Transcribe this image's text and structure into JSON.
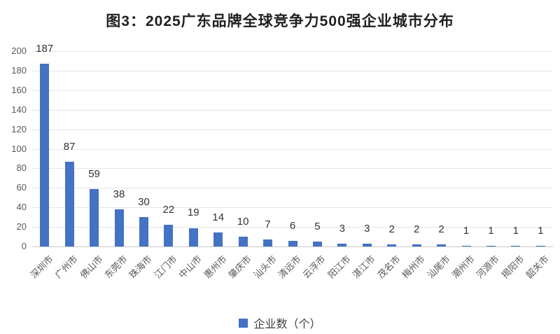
{
  "title": "图3：2025广东品牌全球竞争力500强企业城市分布",
  "legend": {
    "label": "企业数（个）",
    "swatch_color": "#4472C4"
  },
  "colors": {
    "bar": "#4472C4",
    "gridline": "#E6E6E6",
    "baseline": "#C9C9C9",
    "axis_text": "#595959",
    "data_label": "#333333",
    "title_text": "#1F1F1F",
    "background": "#FFFFFF"
  },
  "chart_data": {
    "type": "bar",
    "title": "图3：2025广东品牌全球竞争力500强企业城市分布",
    "categories": [
      "深圳市",
      "广州市",
      "佛山市",
      "东莞市",
      "珠海市",
      "江门市",
      "中山市",
      "惠州市",
      "肇庆市",
      "汕头市",
      "清远市",
      "云浮市",
      "阳江市",
      "湛江市",
      "茂名市",
      "梅州市",
      "汕尾市",
      "潮州市",
      "河源市",
      "揭阳市",
      "韶关市"
    ],
    "values": [
      187,
      87,
      59,
      38,
      30,
      22,
      19,
      14,
      10,
      7,
      6,
      5,
      3,
      3,
      2,
      2,
      2,
      1,
      1,
      1,
      1
    ],
    "xlabel": "",
    "ylabel": "",
    "ylim": [
      0,
      200
    ],
    "yticks": [
      0,
      20,
      40,
      60,
      80,
      100,
      120,
      140,
      160,
      180,
      200
    ],
    "grid": true,
    "data_labels": true,
    "legend_entries": [
      "企业数（个）"
    ],
    "legend_position": "bottom",
    "bar_color": "#4472C4"
  }
}
